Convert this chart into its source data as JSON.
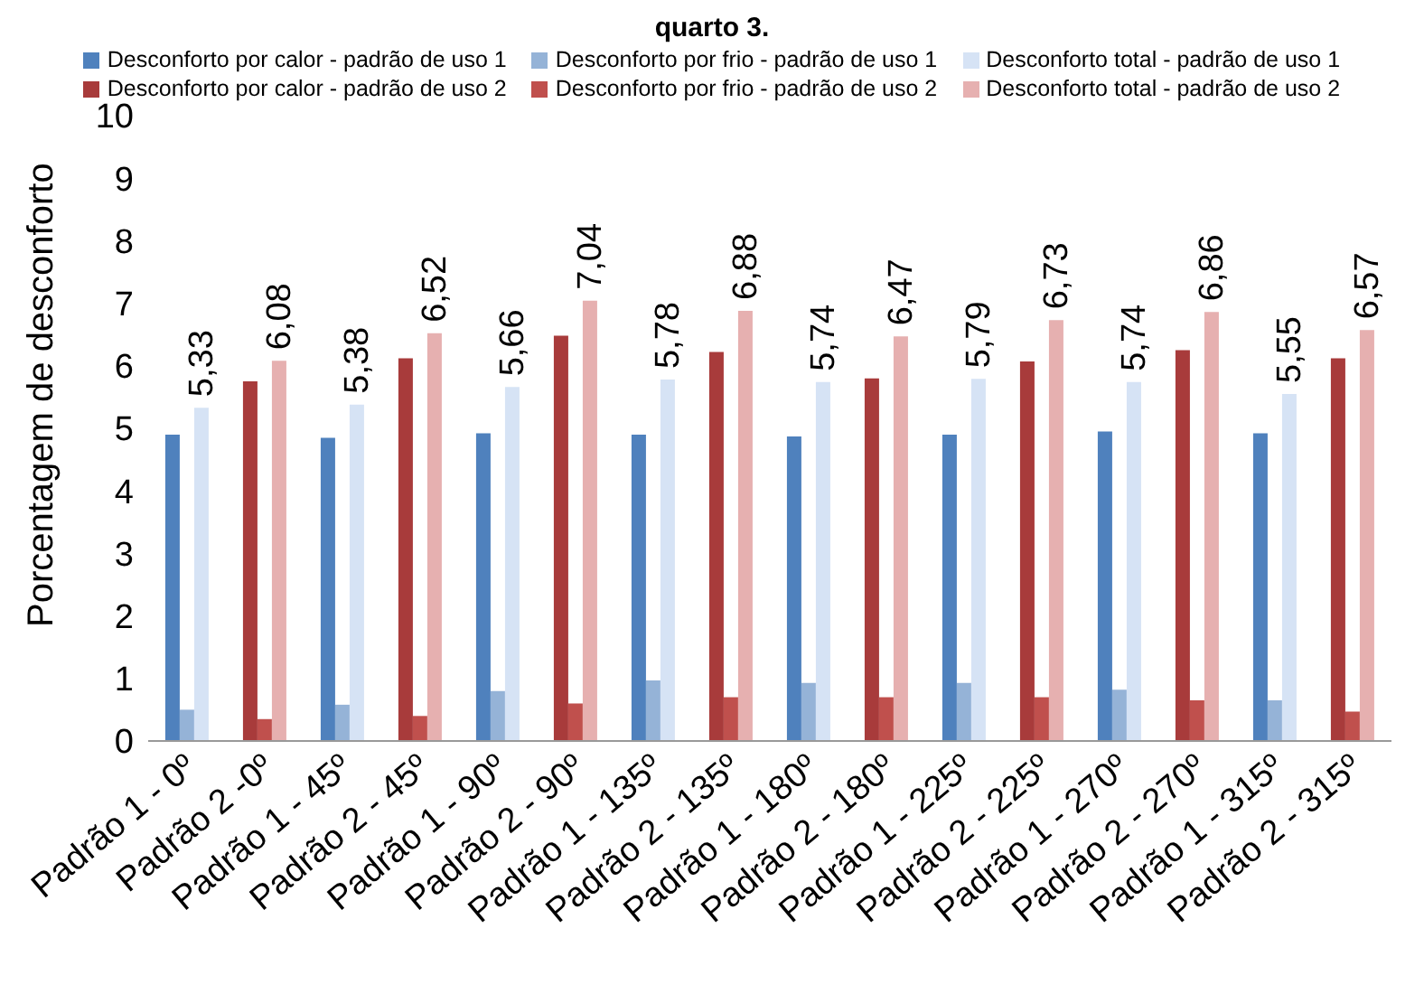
{
  "chart_data": {
    "type": "bar",
    "title": "quarto 3.",
    "ylabel": "Porcentagem de desconforto",
    "ylim": [
      0,
      10
    ],
    "yticks": [
      0,
      1,
      2,
      3,
      4,
      5,
      6,
      7,
      8,
      9,
      10
    ],
    "legend": "top",
    "categories": [
      "Padrão 1 - 0º",
      "Padrão 2 -0º",
      "Padrão 1 - 45º",
      "Padrão 2 - 45º",
      "Padrão 1 - 90º",
      "Padrão 2 - 90º",
      "Padrão 1 - 135º",
      "Padrão 2 - 135º",
      "Padrão 1 - 180º",
      "Padrão 2 - 180º",
      "Padrão 1 - 225º",
      "Padrão 2 - 225º",
      "Padrão 1 - 270º",
      "Padrão 2 - 270º",
      "Padrão 1 - 315º",
      "Padrão 2 - 315º"
    ],
    "series": [
      {
        "name": "Desconforto por calor - padrão de uso 1",
        "color": "#4f81bd",
        "values": [
          4.9,
          null,
          4.85,
          null,
          4.92,
          null,
          4.9,
          null,
          4.87,
          null,
          4.9,
          null,
          4.95,
          null,
          4.92,
          null
        ]
      },
      {
        "name": "Desconforto por frio - padrão de uso 1",
        "color": "#95b3d7",
        "values": [
          0.5,
          null,
          0.58,
          null,
          0.8,
          null,
          0.97,
          null,
          0.93,
          null,
          0.93,
          null,
          0.82,
          null,
          0.65,
          null
        ]
      },
      {
        "name": "Desconforto total - padrão de uso 1",
        "color": "#d6e3f5",
        "values": [
          5.33,
          null,
          5.38,
          null,
          5.66,
          null,
          5.78,
          null,
          5.74,
          null,
          5.79,
          null,
          5.74,
          null,
          5.55,
          null
        ],
        "value_labels": [
          "5,33",
          null,
          "5,38",
          null,
          "5,66",
          null,
          "5,78",
          null,
          "5,74",
          null,
          "5,79",
          null,
          "5,74",
          null,
          "5,55",
          null
        ]
      },
      {
        "name": "Desconforto por calor - padrão de uso 2",
        "color": "#a83b3b",
        "values": [
          null,
          5.75,
          null,
          6.12,
          null,
          6.48,
          null,
          6.22,
          null,
          5.8,
          null,
          6.07,
          null,
          6.25,
          null,
          6.12
        ]
      },
      {
        "name": "Desconforto por frio - padrão de uso 2",
        "color": "#c0504d",
        "values": [
          null,
          0.35,
          null,
          0.4,
          null,
          0.6,
          null,
          0.7,
          null,
          0.7,
          null,
          0.7,
          null,
          0.65,
          null,
          0.47
        ]
      },
      {
        "name": "Desconforto total - padrão de uso 2",
        "color": "#e6b0b0",
        "values": [
          null,
          6.08,
          null,
          6.52,
          null,
          7.04,
          null,
          6.88,
          null,
          6.47,
          null,
          6.73,
          null,
          6.86,
          null,
          6.57
        ],
        "value_labels": [
          null,
          "6,08",
          null,
          "6,52",
          null,
          "7,04",
          null,
          "6,88",
          null,
          "6,47",
          null,
          "6,73",
          null,
          "6,86",
          null,
          "6,57"
        ]
      }
    ]
  }
}
